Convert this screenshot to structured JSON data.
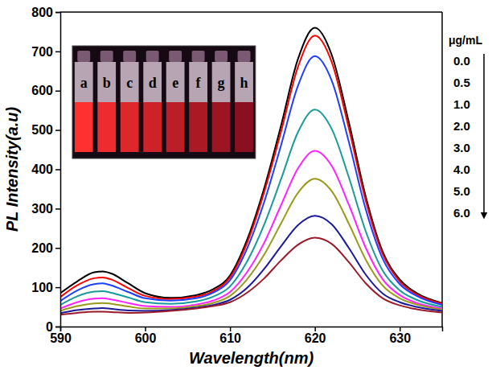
{
  "chart_data": {
    "type": "line",
    "x_label": "Wavelength(nm)",
    "y_label": "PL Intensity(a.u)",
    "legend_title": "μg/mL",
    "legend": "right",
    "inset_labels": [
      "a",
      "b",
      "c",
      "d",
      "e",
      "f",
      "g",
      "h"
    ],
    "x": [
      590,
      592,
      594,
      595,
      596,
      598,
      600,
      603,
      606,
      608,
      610,
      612,
      614,
      616,
      618,
      620,
      622,
      624,
      626,
      628,
      630,
      632,
      635
    ],
    "xlim": [
      590,
      635
    ],
    "xticks": [
      590,
      600,
      610,
      620,
      630
    ],
    "ylim": [
      0,
      800
    ],
    "yticks": [
      0,
      100,
      200,
      300,
      400,
      500,
      600,
      700,
      800
    ],
    "series": [
      {
        "name": "0.0",
        "color": "#000000",
        "values": [
          85,
          115,
          138,
          140,
          135,
          110,
          85,
          73,
          80,
          95,
          130,
          220,
          350,
          510,
          680,
          760,
          690,
          520,
          330,
          190,
          120,
          85,
          60
        ]
      },
      {
        "name": "0.5",
        "color": "#ff0000",
        "values": [
          75,
          105,
          123,
          125,
          120,
          98,
          78,
          70,
          76,
          90,
          125,
          212,
          340,
          495,
          660,
          740,
          672,
          505,
          320,
          184,
          115,
          82,
          58
        ]
      },
      {
        "name": "1.0",
        "color": "#1f3fff",
        "values": [
          65,
          92,
          108,
          110,
          105,
          88,
          72,
          66,
          72,
          86,
          118,
          198,
          315,
          460,
          612,
          688,
          625,
          470,
          298,
          172,
          108,
          78,
          55
        ]
      },
      {
        "name": "2.0",
        "color": "#1a9a9a",
        "values": [
          55,
          77,
          89,
          90,
          86,
          74,
          62,
          58,
          64,
          76,
          102,
          165,
          258,
          374,
          494,
          552,
          502,
          380,
          242,
          142,
          92,
          68,
          50
        ]
      },
      {
        "name": "3.0",
        "color": "#ff22ff",
        "values": [
          46,
          62,
          71,
          72,
          69,
          60,
          52,
          50,
          56,
          66,
          88,
          138,
          212,
          308,
          402,
          447,
          408,
          310,
          200,
          120,
          80,
          60,
          46
        ]
      },
      {
        "name": "4.0",
        "color": "#9a9a1a",
        "values": [
          40,
          52,
          59,
          60,
          58,
          51,
          46,
          46,
          52,
          60,
          78,
          120,
          182,
          262,
          340,
          376,
          344,
          262,
          170,
          104,
          72,
          56,
          43
        ]
      },
      {
        "name": "5.0",
        "color": "#1a1a9a",
        "values": [
          34,
          42,
          46,
          47,
          45,
          41,
          40,
          42,
          48,
          55,
          68,
          98,
          146,
          204,
          258,
          282,
          260,
          200,
          132,
          84,
          62,
          50,
          40
        ]
      },
      {
        "name": "6.0",
        "color": "#9a1a2a",
        "values": [
          30,
          35,
          38,
          38,
          37,
          35,
          36,
          40,
          46,
          52,
          62,
          86,
          122,
          168,
          208,
          226,
          210,
          164,
          110,
          72,
          54,
          44,
          36
        ]
      }
    ]
  }
}
